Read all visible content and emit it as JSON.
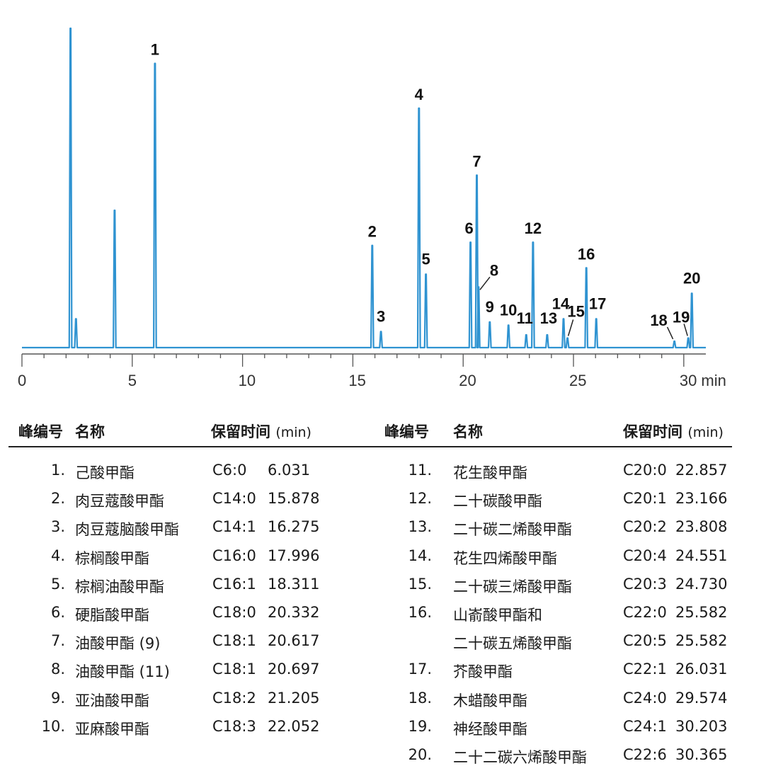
{
  "chart_data": {
    "type": "line",
    "xlabel": "min",
    "xlim": [
      0,
      31
    ],
    "x_ticks": [
      0,
      5,
      10,
      15,
      20,
      25,
      30
    ],
    "x_tick_labels": [
      "0",
      "5",
      "10",
      "15",
      "20",
      "25",
      "30 min"
    ],
    "color": "#2f93d1",
    "solvent_peaks": [
      {
        "x": 2.2,
        "height": 100
      },
      {
        "x": 2.45,
        "height": 9
      },
      {
        "x": 4.2,
        "height": 43
      }
    ],
    "peaks": [
      {
        "label": "1",
        "x": 6.031,
        "height": 89
      },
      {
        "label": "2",
        "x": 15.878,
        "height": 32
      },
      {
        "label": "3",
        "x": 16.275,
        "height": 5
      },
      {
        "label": "4",
        "x": 17.996,
        "height": 75
      },
      {
        "label": "5",
        "x": 18.311,
        "height": 23
      },
      {
        "label": "6",
        "x": 20.332,
        "height": 33
      },
      {
        "label": "7",
        "x": 20.617,
        "height": 54
      },
      {
        "label": "8",
        "x": 20.697,
        "height": 19
      },
      {
        "label": "9",
        "x": 21.205,
        "height": 8
      },
      {
        "label": "10",
        "x": 22.052,
        "height": 7
      },
      {
        "label": "11",
        "x": 22.857,
        "height": 4
      },
      {
        "label": "12",
        "x": 23.166,
        "height": 33
      },
      {
        "label": "13",
        "x": 23.808,
        "height": 4
      },
      {
        "label": "14",
        "x": 24.551,
        "height": 9
      },
      {
        "label": "15",
        "x": 24.73,
        "height": 3
      },
      {
        "label": "16",
        "x": 25.582,
        "height": 25
      },
      {
        "label": "17",
        "x": 26.031,
        "height": 9
      },
      {
        "label": "18",
        "x": 29.574,
        "height": 2
      },
      {
        "label": "19",
        "x": 30.203,
        "height": 3
      },
      {
        "label": "20",
        "x": 30.365,
        "height": 17
      }
    ]
  },
  "table": {
    "headers": {
      "peak_no": "峰编号",
      "name": "名称",
      "rt": "保留时间",
      "rt_unit": "(min)"
    },
    "left_rows": [
      {
        "no": "1.",
        "name": "己酸甲酯",
        "code": "C6:0",
        "rt": "6.031"
      },
      {
        "no": "2.",
        "name": "肉豆蔻酸甲酯",
        "code": "C14:0",
        "rt": "15.878"
      },
      {
        "no": "3.",
        "name": "肉豆蔻脑酸甲酯",
        "code": "C14:1",
        "rt": "16.275"
      },
      {
        "no": "4.",
        "name": "棕榈酸甲酯",
        "code": "C16:0",
        "rt": "17.996"
      },
      {
        "no": "5.",
        "name": "棕榈油酸甲酯",
        "code": "C16:1",
        "rt": "18.311"
      },
      {
        "no": "6.",
        "name": "硬脂酸甲酯",
        "code": "C18:0",
        "rt": "20.332"
      },
      {
        "no": "7.",
        "name": "油酸甲酯 (9)",
        "code": "C18:1",
        "rt": "20.617"
      },
      {
        "no": "8.",
        "name": "油酸甲酯 (11)",
        "code": "C18:1",
        "rt": "20.697"
      },
      {
        "no": "9.",
        "name": "亚油酸甲酯",
        "code": "C18:2",
        "rt": "21.205"
      },
      {
        "no": "10.",
        "name": "亚麻酸甲酯",
        "code": "C18:3",
        "rt": "22.052"
      }
    ],
    "right_rows": [
      {
        "no": "11.",
        "name": "花生酸甲酯",
        "code": "C20:0",
        "rt": "22.857"
      },
      {
        "no": "12.",
        "name": "二十碳酸甲酯",
        "code": "C20:1",
        "rt": "23.166"
      },
      {
        "no": "13.",
        "name": "二十碳二烯酸甲酯",
        "code": "C20:2",
        "rt": "23.808"
      },
      {
        "no": "14.",
        "name": "花生四烯酸甲酯",
        "code": "C20:4",
        "rt": "24.551"
      },
      {
        "no": "15.",
        "name": "二十碳三烯酸甲酯",
        "code": "C20:3",
        "rt": "24.730"
      },
      {
        "no": "16.",
        "name": "山嵛酸甲酯和",
        "code": "C22:0",
        "rt": "25.582"
      },
      {
        "no": "",
        "name": "二十碳五烯酸甲酯",
        "code": "C20:5",
        "rt": "25.582"
      },
      {
        "no": "17.",
        "name": "芥酸甲酯",
        "code": "C22:1",
        "rt": "26.031"
      },
      {
        "no": "18.",
        "name": "木蜡酸甲酯",
        "code": "C24:0",
        "rt": "29.574"
      },
      {
        "no": "19.",
        "name": "神经酸甲酯",
        "code": "C24:1",
        "rt": "30.203"
      },
      {
        "no": "20.",
        "name": "二十二碳六烯酸甲酯",
        "code": "C22:6",
        "rt": "30.365"
      }
    ]
  }
}
